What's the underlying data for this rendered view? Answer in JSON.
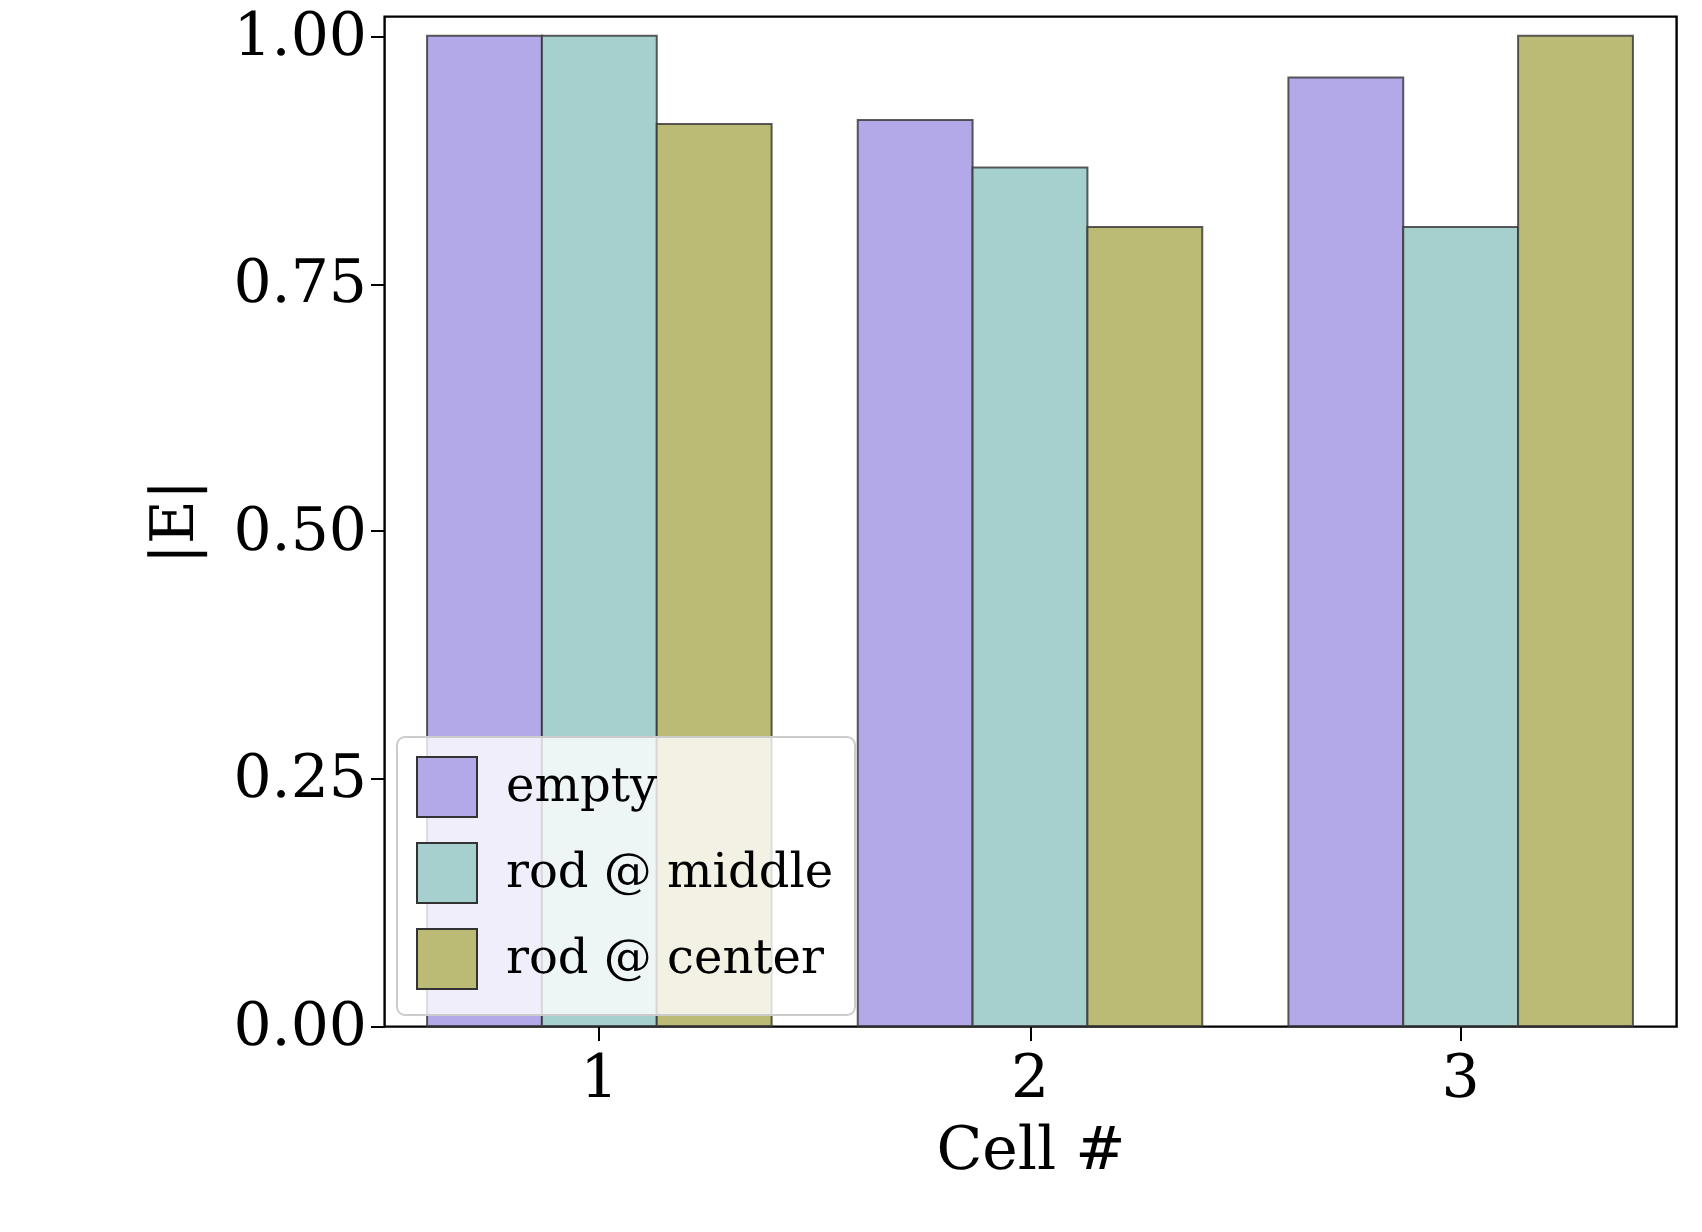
{
  "chart_data": {
    "type": "bar",
    "xlabel": "Cell #",
    "ylabel": "|E|",
    "categories": [
      "1",
      "2",
      "3"
    ],
    "series": [
      {
        "name": "empty",
        "color": "#b3a8e8",
        "values": [
          1.0,
          0.915,
          0.958
        ]
      },
      {
        "name": "rod @ middle",
        "color": "#a5d0ce",
        "values": [
          1.0,
          0.867,
          0.807
        ]
      },
      {
        "name": "rod @ center",
        "color": "#bcbb75",
        "values": [
          0.911,
          0.807,
          1.0
        ]
      }
    ],
    "ylim": [
      0,
      1.02
    ],
    "yticks": [
      {
        "value": 0,
        "label": "0.00"
      },
      {
        "value": 0.25,
        "label": "0.25"
      },
      {
        "value": 0.5,
        "label": "0.50"
      },
      {
        "value": 0.75,
        "label": "0.75"
      },
      {
        "value": 1,
        "label": "1.00"
      }
    ],
    "grid": false,
    "legend": "bottom left"
  }
}
